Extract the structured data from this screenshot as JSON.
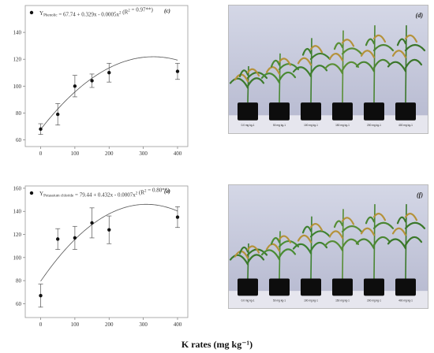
{
  "chart_data": [
    {
      "type": "scatter",
      "panel_label": "(c)",
      "equation": "Y",
      "equation_sub": "Phenolic",
      "equation_rest": " = 67.74 + 0.329x - 0.0005x",
      "equation_exp": "2",
      "equation_r2": " (R",
      "equation_r2_exp": "2",
      "equation_r2_rest": " = 0.97**)",
      "x": [
        0,
        50,
        100,
        150,
        200,
        400
      ],
      "y": [
        68,
        79,
        100,
        104,
        110,
        111
      ],
      "err": [
        4,
        8,
        8,
        5,
        7,
        6
      ],
      "fit": {
        "a": 67.74,
        "b": 0.329,
        "c": -0.0005
      },
      "xticks": [
        0,
        100,
        200,
        300,
        400
      ],
      "xlim": [
        -45,
        430
      ],
      "yticks": [
        60,
        80,
        100,
        120,
        140
      ],
      "ylim": [
        55,
        160
      ],
      "grid": false
    },
    {
      "type": "scatter",
      "panel_label": "(e)",
      "equation": "Y",
      "equation_sub": "Potassium chloride",
      "equation_rest": " = 79.44 + 0.432x - 0.0007x",
      "equation_exp": "2",
      "equation_r2": " (R",
      "equation_r2_exp": "2",
      "equation_r2_rest": " = 0.80**)",
      "x": [
        0,
        50,
        100,
        150,
        200,
        400
      ],
      "y": [
        67,
        116,
        117,
        130,
        124,
        135
      ],
      "err": [
        10,
        9,
        10,
        13,
        12,
        9
      ],
      "fit": {
        "a": 79.44,
        "b": 0.432,
        "c": -0.0007
      },
      "xticks": [
        0,
        100,
        200,
        300,
        400
      ],
      "xlim": [
        -45,
        430
      ],
      "yticks": [
        60,
        80,
        100,
        120,
        140,
        160
      ],
      "ylim": [
        48,
        162
      ],
      "grid": false
    }
  ],
  "photos": {
    "d": {
      "label": "(d)",
      "pot_labels": [
        "0.0 mg kg-1",
        "50 mg kg-1",
        "100 mg kg-1",
        "150 mg kg-1",
        "200 mg kg-1",
        "400 mg kg-1"
      ]
    },
    "f": {
      "label": "(f)",
      "pot_labels": [
        "0.0 mg kg-1",
        "50 mg kg-1",
        "100 mg kg-1",
        "150 mg kg-1",
        "200 mg kg-1",
        "400 mg kg-1"
      ]
    }
  },
  "xaxis_title": "K rates (mg kg⁻¹)"
}
